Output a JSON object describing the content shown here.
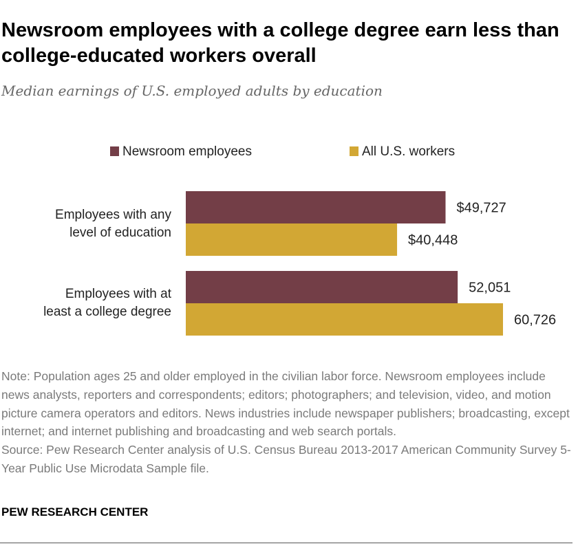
{
  "title": "Newsroom employees with a college degree earn less than college-educated workers overall",
  "subtitle": "Median earnings of U.S. employed adults by education",
  "chart_data": {
    "type": "bar",
    "orientation": "horizontal",
    "categories": [
      [
        "Employees with any",
        "level of education"
      ],
      [
        "Employees with at",
        "least a college degree"
      ]
    ],
    "series": [
      {
        "name": "Newsroom employees",
        "color": "#733e47",
        "values": [
          49727,
          52051
        ],
        "labels": [
          "$49,727",
          "52,051"
        ]
      },
      {
        "name": "All U.S. workers",
        "color": "#d2a734",
        "values": [
          40448,
          60726
        ],
        "labels": [
          "$40,448",
          "60,726"
        ]
      }
    ],
    "xlim": [
      0,
      60726
    ],
    "legend_position": "top",
    "grid": false
  },
  "note": [
    "Note: Population ages 25 and older employed in the civilian labor force. Newsroom employees include news analysts, reporters and correspondents; editors; photographers; and television, video, and motion picture camera operators and editors. News industries include newspaper publishers; broadcasting, except internet; and internet publishing and broadcasting and web search portals.",
    "Source: Pew Research Center analysis of U.S. Census Bureau 2013-2017 American Community Survey 5-Year Public Use Microdata Sample file."
  ],
  "brand": "PEW RESEARCH CENTER"
}
